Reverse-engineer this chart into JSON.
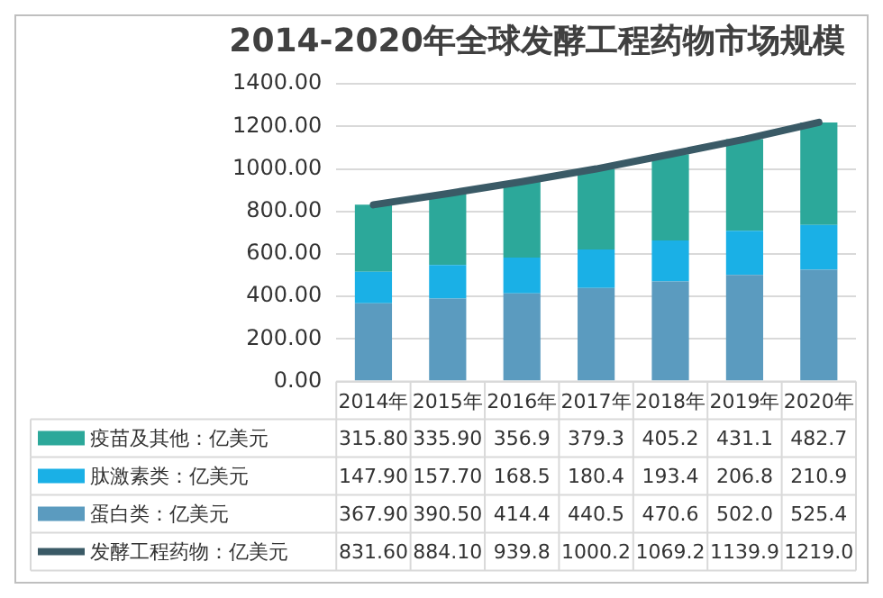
{
  "chart_data": {
    "type": "bar",
    "title": "2014-2020年全球发酵工程药物市场规模",
    "categories": [
      "2014年",
      "2015年",
      "2016年",
      "2017年",
      "2018年",
      "2019年",
      "2020年"
    ],
    "stacked": true,
    "series": [
      {
        "name": "蛋白类：亿美元",
        "color": "#5b9bbf",
        "values": [
          367.9,
          390.5,
          414.4,
          440.5,
          470.6,
          502.0,
          525.4
        ],
        "value_labels": [
          "367.90",
          "390.50",
          "414.4",
          "440.5",
          "470.6",
          "502.0",
          "525.4"
        ]
      },
      {
        "name": "肽激素类：亿美元",
        "color": "#1ab0e6",
        "values": [
          147.9,
          157.7,
          168.5,
          180.4,
          193.4,
          206.8,
          210.9
        ],
        "value_labels": [
          "147.90",
          "157.70",
          "168.5",
          "180.4",
          "193.4",
          "206.8",
          "210.9"
        ]
      },
      {
        "name": "疫苗及其他：亿美元",
        "color": "#2ca89a",
        "values": [
          315.8,
          335.9,
          356.9,
          379.3,
          405.2,
          431.1,
          482.7
        ],
        "value_labels": [
          "315.80",
          "335.90",
          "356.9",
          "379.3",
          "405.2",
          "431.1",
          "482.7"
        ]
      },
      {
        "name": "发酵工程药物：亿美元",
        "type": "line",
        "color": "#3a5a66",
        "values": [
          831.6,
          884.1,
          939.8,
          1000.2,
          1069.2,
          1139.9,
          1219.0
        ],
        "value_labels": [
          "831.60",
          "884.10",
          "939.8",
          "1000.2",
          "1069.2",
          "1139.9",
          "1219.0"
        ]
      }
    ],
    "ylim": [
      0,
      1400
    ],
    "yticks": [
      {
        "value": 0,
        "label": "0.00"
      },
      {
        "value": 200,
        "label": "200.00"
      },
      {
        "value": 400,
        "label": "400.00"
      },
      {
        "value": 600,
        "label": "600.00"
      },
      {
        "value": 800,
        "label": "800.00"
      },
      {
        "value": 1000,
        "label": "1000.00"
      },
      {
        "value": 1200,
        "label": "1200.00"
      },
      {
        "value": 1400,
        "label": "1400.00"
      }
    ],
    "grid": "y",
    "legend": "bottom",
    "marker": "none"
  }
}
